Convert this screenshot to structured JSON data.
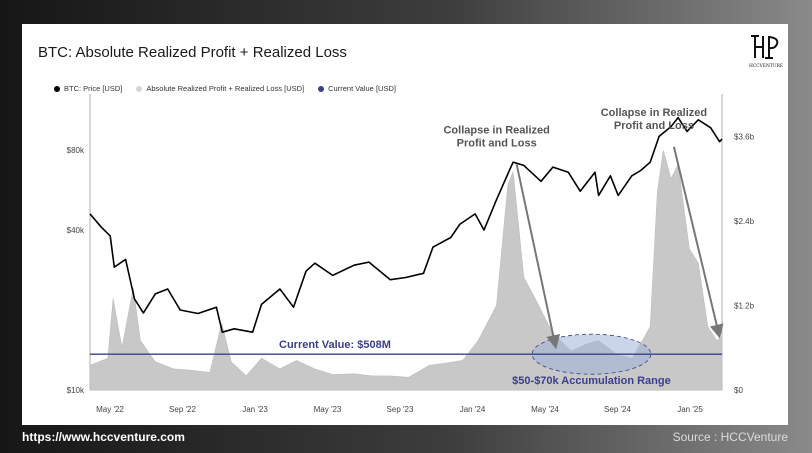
{
  "title": "BTC: Absolute Realized Profit + Realized Loss",
  "logo": {
    "text": "HCCVENTURE",
    "monogram": "HP"
  },
  "footer": {
    "url": "https://www.hccventure.com",
    "source": "Source : HCCVenture"
  },
  "colors": {
    "price": "#000000",
    "bars": "#c8c8c8",
    "current": "#3a3f8c",
    "ellipse": "#9fb3d9"
  },
  "chart_data": {
    "type": "line",
    "title": "BTC: Absolute Realized Profit + Realized Loss",
    "legend_position": "top-left",
    "legend": [
      {
        "label": "BTC: Price [USD]",
        "color": "#000000"
      },
      {
        "label": "Absolute Realized Profit + Realized Loss [USD]",
        "color": "#d5d5d5"
      },
      {
        "label": "Current Value [USD]",
        "color": "#3a3f8c"
      }
    ],
    "x_ticks": [
      "May '22",
      "Sep '22",
      "Jan '23",
      "May '23",
      "Sep '23",
      "Jan '24",
      "May '24",
      "Sep '24",
      "Jan '25"
    ],
    "x_range": [
      "2022-04-01",
      "2025-03-01"
    ],
    "y_left": {
      "scale": "log",
      "range": [
        10000,
        130000
      ],
      "ticks": [
        {
          "value": 10000,
          "label": "$10k"
        },
        {
          "value": 40000,
          "label": "$40k"
        },
        {
          "value": 80000,
          "label": "$80k"
        }
      ]
    },
    "y_right": {
      "scale": "linear",
      "range": [
        0,
        4200000000
      ],
      "ticks": [
        {
          "value": 0,
          "label": "$0"
        },
        {
          "value": 1200000000,
          "label": "$1.2b"
        },
        {
          "value": 2400000000,
          "label": "$2.4b"
        },
        {
          "value": 3600000000,
          "label": "$3.6b"
        }
      ]
    },
    "price_series": {
      "name": "BTC: Price [USD]",
      "points": [
        [
          "2022-04-01",
          46000
        ],
        [
          "2022-04-20",
          41000
        ],
        [
          "2022-05-05",
          38000
        ],
        [
          "2022-05-12",
          29000
        ],
        [
          "2022-05-31",
          31000
        ],
        [
          "2022-06-15",
          22000
        ],
        [
          "2022-06-30",
          19500
        ],
        [
          "2022-07-20",
          23000
        ],
        [
          "2022-08-10",
          24000
        ],
        [
          "2022-08-31",
          20000
        ],
        [
          "2022-09-30",
          19400
        ],
        [
          "2022-10-31",
          20500
        ],
        [
          "2022-11-10",
          16500
        ],
        [
          "2022-11-30",
          17000
        ],
        [
          "2022-12-31",
          16500
        ],
        [
          "2023-01-15",
          21000
        ],
        [
          "2023-02-15",
          24000
        ],
        [
          "2023-03-10",
          20500
        ],
        [
          "2023-03-31",
          28000
        ],
        [
          "2023-04-15",
          30000
        ],
        [
          "2023-05-15",
          27000
        ],
        [
          "2023-06-20",
          29500
        ],
        [
          "2023-07-15",
          30300
        ],
        [
          "2023-08-20",
          26000
        ],
        [
          "2023-09-15",
          26500
        ],
        [
          "2023-10-15",
          27500
        ],
        [
          "2023-10-31",
          34500
        ],
        [
          "2023-11-30",
          37500
        ],
        [
          "2023-12-15",
          42000
        ],
        [
          "2024-01-10",
          46000
        ],
        [
          "2024-01-25",
          40000
        ],
        [
          "2024-02-15",
          52000
        ],
        [
          "2024-03-01",
          62000
        ],
        [
          "2024-03-14",
          72000
        ],
        [
          "2024-04-01",
          70000
        ],
        [
          "2024-04-30",
          61000
        ],
        [
          "2024-05-20",
          69000
        ],
        [
          "2024-06-15",
          66000
        ],
        [
          "2024-07-05",
          56000
        ],
        [
          "2024-07-30",
          66000
        ],
        [
          "2024-08-05",
          54000
        ],
        [
          "2024-08-25",
          64000
        ],
        [
          "2024-09-07",
          54000
        ],
        [
          "2024-09-30",
          64000
        ],
        [
          "2024-10-15",
          67000
        ],
        [
          "2024-10-31",
          72000
        ],
        [
          "2024-11-15",
          90000
        ],
        [
          "2024-12-05",
          98000
        ],
        [
          "2024-12-17",
          106000
        ],
        [
          "2025-01-01",
          94000
        ],
        [
          "2025-01-20",
          104000
        ],
        [
          "2025-02-10",
          97000
        ],
        [
          "2025-02-25",
          86000
        ],
        [
          "2025-03-01",
          88000
        ]
      ]
    },
    "bars_series": {
      "name": "Absolute Realized Profit + Realized Loss [USD]",
      "points": [
        [
          "2022-04-01",
          350000000
        ],
        [
          "2022-05-01",
          450000000
        ],
        [
          "2022-05-10",
          1300000000
        ],
        [
          "2022-05-25",
          600000000
        ],
        [
          "2022-06-13",
          1450000000
        ],
        [
          "2022-06-25",
          700000000
        ],
        [
          "2022-07-20",
          400000000
        ],
        [
          "2022-08-20",
          300000000
        ],
        [
          "2022-09-20",
          280000000
        ],
        [
          "2022-10-20",
          250000000
        ],
        [
          "2022-11-09",
          950000000
        ],
        [
          "2022-11-25",
          400000000
        ],
        [
          "2022-12-20",
          200000000
        ],
        [
          "2023-01-15",
          450000000
        ],
        [
          "2023-02-15",
          300000000
        ],
        [
          "2023-03-15",
          420000000
        ],
        [
          "2023-04-15",
          300000000
        ],
        [
          "2023-05-15",
          220000000
        ],
        [
          "2023-06-20",
          230000000
        ],
        [
          "2023-07-20",
          200000000
        ],
        [
          "2023-08-20",
          200000000
        ],
        [
          "2023-09-20",
          180000000
        ],
        [
          "2023-10-25",
          350000000
        ],
        [
          "2023-11-20",
          380000000
        ],
        [
          "2023-12-20",
          420000000
        ],
        [
          "2024-01-15",
          700000000
        ],
        [
          "2024-02-15",
          1200000000
        ],
        [
          "2024-03-05",
          2900000000
        ],
        [
          "2024-03-14",
          3100000000
        ],
        [
          "2024-04-01",
          1600000000
        ],
        [
          "2024-04-20",
          1300000000
        ],
        [
          "2024-05-20",
          800000000
        ],
        [
          "2024-06-20",
          550000000
        ],
        [
          "2024-07-15",
          650000000
        ],
        [
          "2024-08-05",
          700000000
        ],
        [
          "2024-09-05",
          500000000
        ],
        [
          "2024-10-01",
          450000000
        ],
        [
          "2024-10-31",
          900000000
        ],
        [
          "2024-11-12",
          2800000000
        ],
        [
          "2024-11-22",
          3400000000
        ],
        [
          "2024-12-05",
          3000000000
        ],
        [
          "2024-12-17",
          3200000000
        ],
        [
          "2025-01-05",
          2000000000
        ],
        [
          "2025-01-20",
          1800000000
        ],
        [
          "2025-02-05",
          900000000
        ],
        [
          "2025-02-20",
          700000000
        ],
        [
          "2025-03-01",
          750000000
        ]
      ]
    },
    "current_value": {
      "value": 508000000,
      "label": "Current Value: $508M"
    },
    "annotations": [
      {
        "text_lines": [
          "Collapse in Realized",
          "Profit and Loss"
        ],
        "from": [
          "2024-03-20",
          3200000000
        ],
        "to": [
          "2024-05-25",
          600000000
        ]
      },
      {
        "text_lines": [
          "Collapse in Realized",
          "Profit and Loss"
        ],
        "from": [
          "2024-12-10",
          3450000000
        ],
        "to": [
          "2025-02-25",
          750000000
        ]
      }
    ],
    "accumulation": {
      "label": "$50-$70k Accumulation Range",
      "x_range": [
        "2024-04-15",
        "2024-11-01"
      ]
    }
  }
}
